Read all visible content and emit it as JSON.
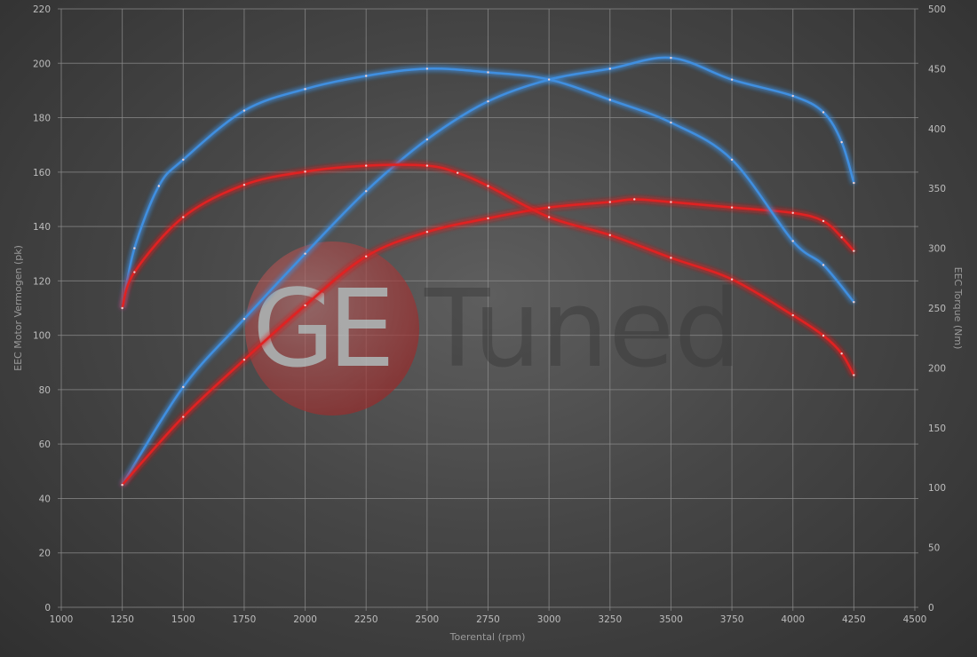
{
  "watermark": {
    "logo_text": "GETuned"
  },
  "chart_data": {
    "type": "line",
    "title": "",
    "xlabel": "Toerental (rpm)",
    "ylabel": "EEC Motor Vermogen (pk)",
    "y2label": "EEC Torque (Nm)",
    "xlim": [
      1000,
      4500
    ],
    "ylim": [
      0,
      220
    ],
    "y2lim": [
      0,
      500
    ],
    "xticks": [
      1000,
      1250,
      1500,
      1750,
      2000,
      2250,
      2500,
      2750,
      3000,
      3250,
      3500,
      3750,
      4000,
      4250,
      4500
    ],
    "yticks": [
      0,
      20,
      40,
      60,
      80,
      100,
      120,
      140,
      160,
      180,
      200,
      220
    ],
    "y2ticks": [
      0,
      50,
      100,
      150,
      200,
      250,
      300,
      350,
      400,
      450,
      500
    ],
    "grid": true,
    "legend": "none",
    "series": [
      {
        "axis": "left",
        "color": "#3f8fe0",
        "x": [
          1250,
          1500,
          1750,
          2000,
          2250,
          2500,
          2750,
          3000,
          3250,
          3500,
          3750,
          4000,
          4125,
          4200,
          4250
        ],
        "y": [
          45,
          81,
          106,
          130,
          153,
          172,
          186,
          194,
          198,
          202,
          194,
          188,
          182,
          171,
          156
        ]
      },
      {
        "axis": "left",
        "color": "#e02424",
        "x": [
          1250,
          1500,
          1750,
          2000,
          2250,
          2500,
          2750,
          3000,
          3250,
          3350,
          3500,
          3750,
          4000,
          4125,
          4200,
          4250
        ],
        "y": [
          45,
          70,
          91,
          111,
          129,
          138,
          143,
          147,
          149,
          150,
          149,
          147,
          145,
          142,
          136,
          131
        ]
      },
      {
        "axis": "right",
        "color": "#3f8fe0",
        "x": [
          1250,
          1300,
          1400,
          1500,
          1750,
          2000,
          2250,
          2500,
          2750,
          3000,
          3250,
          3500,
          3750,
          4000,
          4125,
          4250
        ],
        "y": [
          250,
          300,
          352,
          374,
          415,
          433,
          444,
          450,
          447,
          441,
          424,
          405,
          374,
          306,
          286,
          255
        ]
      },
      {
        "axis": "right",
        "color": "#e02424",
        "x": [
          1250,
          1300,
          1500,
          1750,
          2000,
          2250,
          2500,
          2625,
          2750,
          3000,
          3250,
          3500,
          3750,
          4000,
          4125,
          4200,
          4250
        ],
        "y": [
          250,
          280,
          326,
          353,
          364,
          369,
          369,
          363,
          352,
          326,
          311,
          292,
          274,
          244,
          227,
          212,
          194
        ]
      }
    ]
  }
}
